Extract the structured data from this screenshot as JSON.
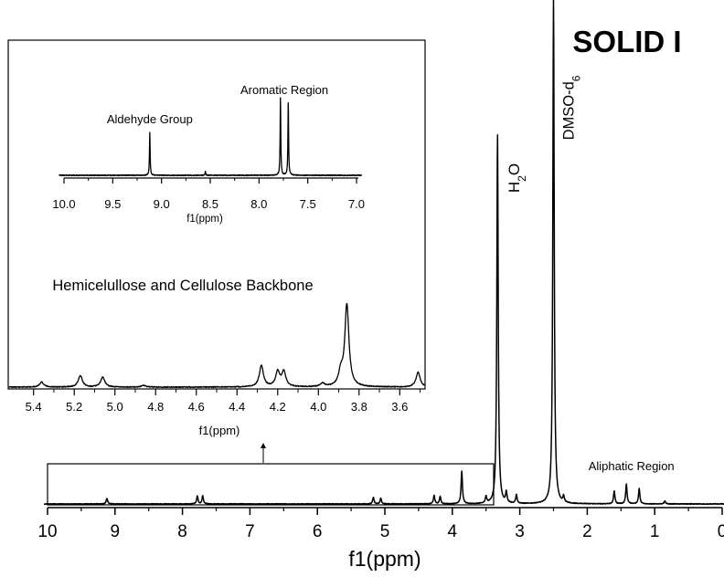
{
  "chart_data": [
    {
      "type": "line",
      "panel": "main",
      "title": "SOLID I",
      "xlabel": "f1(ppm)",
      "ylabel": "",
      "xlim": [
        10,
        0
      ],
      "x_reversed": true,
      "xticks": [
        "10",
        "9",
        "8",
        "7",
        "6",
        "5",
        "4",
        "3",
        "2",
        "1",
        "0"
      ],
      "peaks": [
        {
          "ppm": 9.12,
          "height": 0.012
        },
        {
          "ppm": 7.78,
          "height": 0.017
        },
        {
          "ppm": 7.7,
          "height": 0.017
        },
        {
          "ppm": 5.17,
          "height": 0.014
        },
        {
          "ppm": 5.06,
          "height": 0.012
        },
        {
          "ppm": 4.27,
          "height": 0.018
        },
        {
          "ppm": 4.18,
          "height": 0.016
        },
        {
          "ppm": 3.86,
          "height": 0.067
        },
        {
          "ppm": 3.5,
          "height": 0.014
        },
        {
          "ppm": 3.33,
          "height": 0.765
        },
        {
          "ppm": 3.2,
          "height": 0.022
        },
        {
          "ppm": 3.05,
          "height": 0.018
        },
        {
          "ppm": 2.5,
          "height": 1.05
        },
        {
          "ppm": 2.35,
          "height": 0.013
        },
        {
          "ppm": 1.6,
          "height": 0.027
        },
        {
          "ppm": 1.42,
          "height": 0.041
        },
        {
          "ppm": 1.23,
          "height": 0.032
        },
        {
          "ppm": 0.85,
          "height": 0.006
        }
      ],
      "annotations": {
        "h2o": {
          "label": "H",
          "sub": "2",
          "label_end": "O",
          "ppm": 3.33
        },
        "dmso": {
          "label": "DMSO-d",
          "sub": "6",
          "ppm": 2.5
        },
        "aliphatic": {
          "label": "Aliphatic Region",
          "ppm": 1.4
        }
      },
      "zoom_box": {
        "x_from": 10.0,
        "x_to": 3.38
      }
    },
    {
      "type": "line",
      "panel": "inset-top",
      "xlabel": "f1(ppm)",
      "xlim": [
        10.0,
        7.0
      ],
      "x_reversed": true,
      "xticks": [
        "10.0",
        "9.5",
        "9.0",
        "8.5",
        "8.0",
        "7.5",
        "7.0"
      ],
      "peaks": [
        {
          "ppm": 9.12,
          "height": 0.55
        },
        {
          "ppm": 8.55,
          "height": 0.05
        },
        {
          "ppm": 7.78,
          "height": 1.0
        },
        {
          "ppm": 7.7,
          "height": 0.95
        }
      ],
      "labels": [
        {
          "text": "Aldehyde Group",
          "ppm": 9.12
        },
        {
          "text": "Aromatic Region",
          "ppm": 7.74
        }
      ]
    },
    {
      "type": "line",
      "panel": "inset-bottom",
      "title": "Hemicelullose and Cellulose Backbone",
      "xlabel": "f1(ppm)",
      "xlim": [
        5.5,
        3.5
      ],
      "x_reversed": true,
      "xticks": [
        "5.4",
        "5.2",
        "5.0",
        "4.8",
        "4.6",
        "4.4",
        "4.2",
        "4.0",
        "3.8",
        "3.6"
      ],
      "peaks": [
        {
          "ppm": 5.36,
          "height": 0.06
        },
        {
          "ppm": 5.17,
          "height": 0.14
        },
        {
          "ppm": 5.06,
          "height": 0.12
        },
        {
          "ppm": 4.86,
          "height": 0.02
        },
        {
          "ppm": 4.28,
          "height": 0.26
        },
        {
          "ppm": 4.2,
          "height": 0.18
        },
        {
          "ppm": 4.17,
          "height": 0.18
        },
        {
          "ppm": 3.98,
          "height": 0.04
        },
        {
          "ppm": 3.89,
          "height": 0.16
        },
        {
          "ppm": 3.86,
          "height": 1.0
        },
        {
          "ppm": 3.51,
          "height": 0.18
        }
      ]
    }
  ]
}
